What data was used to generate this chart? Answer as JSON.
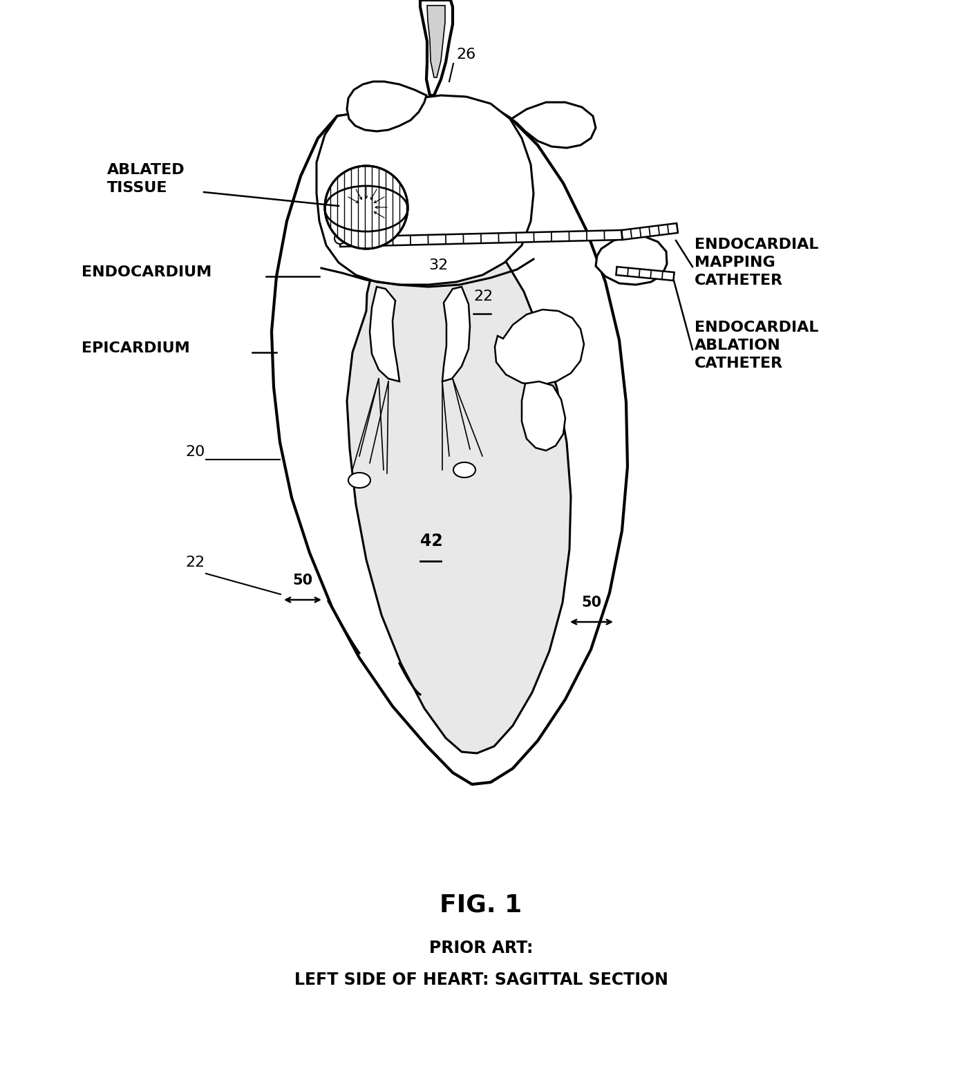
{
  "title": "FIG. 1",
  "subtitle1": "PRIOR ART:",
  "subtitle2": "LEFT SIDE OF HEART: SAGITTAL SECTION",
  "title_fontsize": 26,
  "subtitle_fontsize": 17,
  "bg_color": "#ffffff",
  "line_color": "#000000",
  "figsize": [
    13.92,
    15.73
  ],
  "dpi": 100,
  "label_fontsize": 16,
  "num_fontsize": 15
}
